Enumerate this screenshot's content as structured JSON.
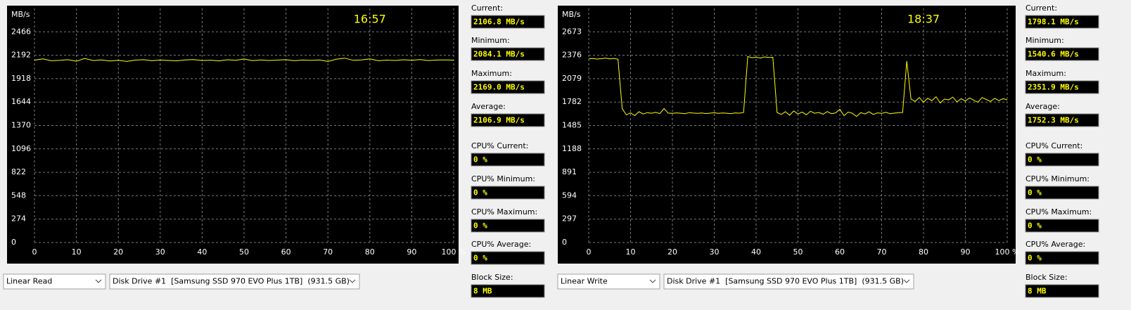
{
  "chart_data": [
    {
      "type": "line",
      "y_label": "MB/s",
      "annotation": "16:57",
      "color": "#ffff00",
      "xlim": [
        0,
        100
      ],
      "xticks": [
        0,
        10,
        20,
        30,
        40,
        50,
        60,
        70,
        80,
        90,
        {
          "value": 100,
          "label": "100 %"
        }
      ],
      "ylim": [
        0,
        2740
      ],
      "yticks": [
        0,
        274,
        548,
        822,
        1096,
        1370,
        1644,
        1918,
        2192,
        2466
      ],
      "grid": true,
      "x": [
        0,
        2,
        4,
        6,
        8,
        10,
        12,
        14,
        16,
        18,
        20,
        22,
        24,
        26,
        28,
        30,
        32,
        34,
        36,
        38,
        40,
        42,
        44,
        46,
        48,
        50,
        52,
        54,
        56,
        58,
        60,
        62,
        64,
        66,
        68,
        70,
        72,
        74,
        76,
        78,
        80,
        82,
        84,
        86,
        88,
        90,
        92,
        94,
        96,
        98,
        100
      ],
      "values": [
        2135,
        2150,
        2128,
        2132,
        2140,
        2122,
        2155,
        2130,
        2138,
        2125,
        2133,
        2120,
        2135,
        2140,
        2128,
        2136,
        2131,
        2127,
        2138,
        2142,
        2130,
        2134,
        2126,
        2139,
        2133,
        2148,
        2129,
        2137,
        2131,
        2135,
        2140,
        2128,
        2136,
        2132,
        2138,
        2120,
        2145,
        2158,
        2133,
        2137,
        2150,
        2128,
        2135,
        2131,
        2139,
        2133,
        2141,
        2130,
        2136,
        2138,
        2134
      ]
    },
    {
      "type": "line",
      "y_label": "MB/s",
      "annotation": "18:37",
      "color": "#ffff00",
      "xlim": [
        0,
        100
      ],
      "xticks": [
        0,
        10,
        20,
        30,
        40,
        50,
        60,
        70,
        80,
        90,
        {
          "value": 100,
          "label": "100 %"
        }
      ],
      "ylim": [
        0,
        2970
      ],
      "yticks": [
        0,
        297,
        594,
        891,
        1188,
        1485,
        1782,
        2079,
        2376,
        2673
      ],
      "grid": true,
      "x": [
        0,
        1,
        2,
        3,
        4,
        5,
        6,
        7,
        8,
        9,
        10,
        11,
        12,
        13,
        14,
        15,
        16,
        17,
        18,
        19,
        20,
        21,
        22,
        23,
        24,
        25,
        26,
        27,
        28,
        29,
        30,
        31,
        32,
        33,
        34,
        35,
        36,
        37,
        38,
        39,
        40,
        41,
        42,
        43,
        44,
        45,
        46,
        47,
        48,
        49,
        50,
        51,
        52,
        53,
        54,
        55,
        56,
        57,
        58,
        59,
        60,
        61,
        62,
        63,
        64,
        65,
        66,
        67,
        68,
        69,
        70,
        71,
        72,
        73,
        74,
        75,
        76,
        77,
        78,
        79,
        80,
        81,
        82,
        83,
        84,
        85,
        86,
        87,
        88,
        89,
        90,
        91,
        92,
        93,
        94,
        95,
        96,
        97,
        98,
        99,
        100
      ],
      "values": [
        2330,
        2335,
        2328,
        2332,
        2340,
        2330,
        2336,
        2325,
        1700,
        1620,
        1645,
        1610,
        1660,
        1630,
        1648,
        1640,
        1652,
        1636,
        1700,
        1642,
        1638,
        1645,
        1640,
        1635,
        1648,
        1642,
        1639,
        1644,
        1637,
        1641,
        1646,
        1638,
        1643,
        1640,
        1636,
        1645,
        1641,
        1650,
        2360,
        2345,
        2352,
        2340,
        2355,
        2348,
        2350,
        1650,
        1625,
        1660,
        1615,
        1670,
        1630,
        1655,
        1620,
        1665,
        1640,
        1650,
        1628,
        1662,
        1635,
        1645,
        1690,
        1610,
        1655,
        1640,
        1600,
        1648,
        1630,
        1660,
        1625,
        1645,
        1638,
        1652,
        1634,
        1641,
        1647,
        1650,
        2300,
        1820,
        1790,
        1840,
        1780,
        1830,
        1800,
        1850,
        1770,
        1820,
        1810,
        1845,
        1785,
        1825,
        1795,
        1835,
        1805,
        1780,
        1840,
        1815,
        1790,
        1830,
        1800,
        1825,
        1810
      ]
    }
  ],
  "panels": [
    {
      "stats": [
        {
          "label": "Current:",
          "value": "2106.8 MB/s"
        },
        {
          "label": "Minimum:",
          "value": "2084.1 MB/s"
        },
        {
          "label": "Maximum:",
          "value": "2169.0 MB/s"
        },
        {
          "label": "Average:",
          "value": "2106.9 MB/s"
        },
        {
          "label": "CPU% Current:",
          "value": "0 %"
        },
        {
          "label": "CPU% Minimum:",
          "value": "0 %"
        },
        {
          "label": "CPU% Maximum:",
          "value": "0 %"
        },
        {
          "label": "CPU% Average:",
          "value": "0 %"
        },
        {
          "label": "Block Size:",
          "value": "8 MB"
        }
      ],
      "test": "Linear Read",
      "drive": "Disk Drive #1  [Samsung SSD 970 EVO Plus 1TB]  (931.5 GB)"
    },
    {
      "stats": [
        {
          "label": "Current:",
          "value": "1798.1 MB/s"
        },
        {
          "label": "Minimum:",
          "value": "1540.6 MB/s"
        },
        {
          "label": "Maximum:",
          "value": "2351.9 MB/s"
        },
        {
          "label": "Average:",
          "value": "1752.3 MB/s"
        },
        {
          "label": "CPU% Current:",
          "value": "0 %"
        },
        {
          "label": "CPU% Minimum:",
          "value": "0 %"
        },
        {
          "label": "CPU% Maximum:",
          "value": "0 %"
        },
        {
          "label": "CPU% Average:",
          "value": "0 %"
        },
        {
          "label": "Block Size:",
          "value": "8 MB"
        }
      ],
      "test": "Linear Write",
      "drive": "Disk Drive #1  [Samsung SSD 970 EVO Plus 1TB]  (931.5 GB)"
    }
  ]
}
